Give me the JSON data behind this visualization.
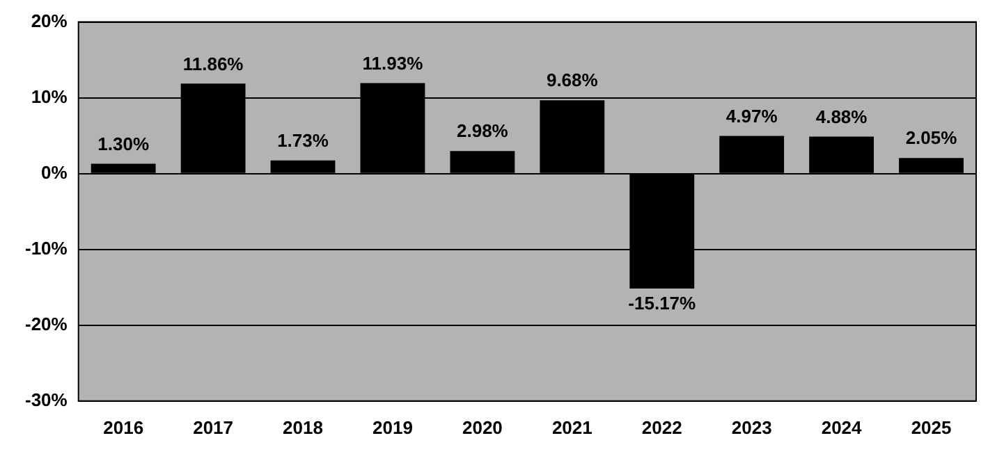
{
  "chart_data": {
    "type": "bar",
    "categories": [
      "2016",
      "2017",
      "2018",
      "2019",
      "2020",
      "2021",
      "2022",
      "2023",
      "2024",
      "2025"
    ],
    "values": [
      1.3,
      11.86,
      1.73,
      11.93,
      2.98,
      9.68,
      -15.17,
      4.97,
      4.88,
      2.05
    ],
    "value_labels": [
      "1.30%",
      "11.86%",
      "1.73%",
      "11.93%",
      "2.98%",
      "9.68%",
      "-15.17%",
      "4.97%",
      "4.88%",
      "2.05%"
    ],
    "color": "#000000",
    "ylim": [
      -30,
      20
    ],
    "yticks": [
      {
        "value": 20,
        "label": "20%"
      },
      {
        "value": 10,
        "label": "10%"
      },
      {
        "value": 0,
        "label": "0%"
      },
      {
        "value": -10,
        "label": "-10%"
      },
      {
        "value": -20,
        "label": "-20%"
      },
      {
        "value": -30,
        "label": "-30%"
      }
    ],
    "grid": "y",
    "legend": false
  }
}
